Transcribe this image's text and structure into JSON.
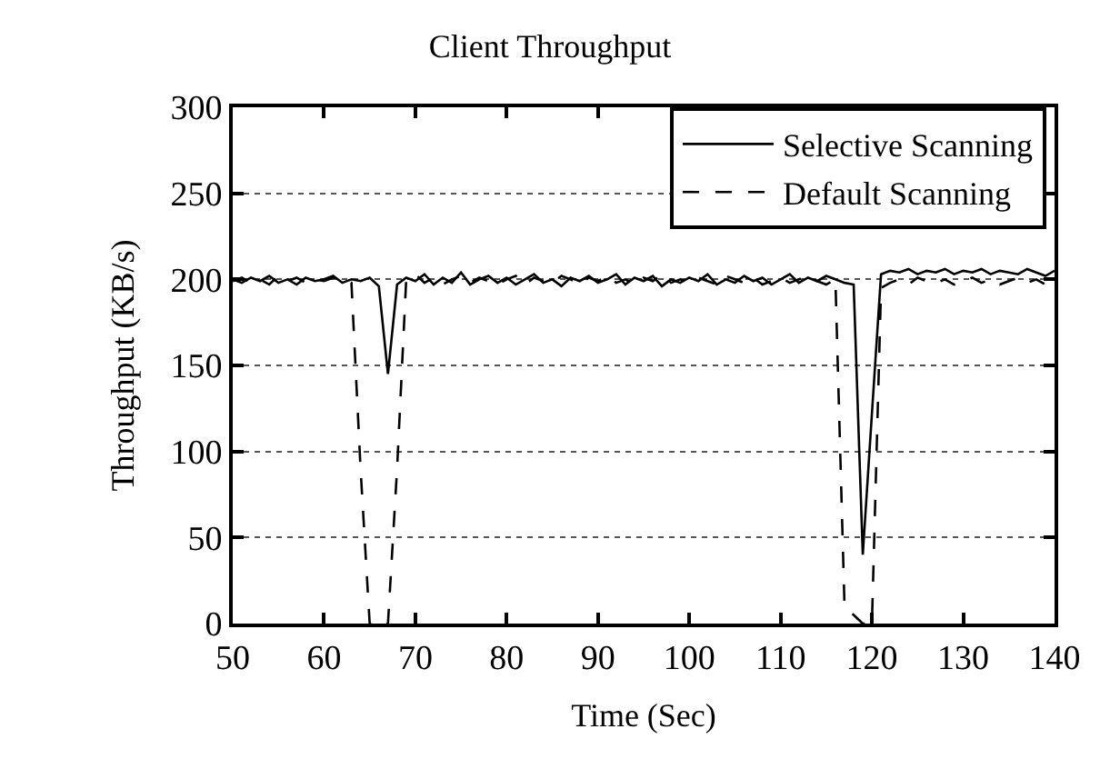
{
  "chart_data": {
    "type": "line",
    "title": "Client Throughput",
    "xlabel": "Time (Sec)",
    "ylabel": "Throughput (KB/s)",
    "x": [
      50,
      51,
      52,
      53,
      54,
      55,
      56,
      57,
      58,
      59,
      60,
      61,
      62,
      63,
      64,
      65,
      66,
      67,
      68,
      69,
      70,
      71,
      72,
      73,
      74,
      75,
      76,
      77,
      78,
      79,
      80,
      81,
      82,
      83,
      84,
      85,
      86,
      87,
      88,
      89,
      90,
      91,
      92,
      93,
      94,
      95,
      96,
      97,
      98,
      99,
      100,
      101,
      102,
      103,
      104,
      105,
      106,
      107,
      108,
      109,
      110,
      111,
      112,
      113,
      114,
      115,
      116,
      117,
      118,
      119,
      120,
      121,
      122,
      123,
      124,
      125,
      126,
      127,
      128,
      129,
      130,
      131,
      132,
      133,
      134,
      135,
      136,
      137,
      138,
      139,
      140
    ],
    "series": [
      {
        "name": "Selective Scanning",
        "color": "#000000",
        "line_style": "solid",
        "values": [
          200,
          198,
          201,
          199,
          202,
          198,
          200,
          197,
          201,
          199,
          200,
          202,
          198,
          200,
          199,
          201,
          196,
          145,
          197,
          201,
          199,
          203,
          197,
          201,
          198,
          204,
          197,
          200,
          202,
          198,
          201,
          197,
          200,
          203,
          198,
          200,
          196,
          201,
          199,
          202,
          198,
          200,
          203,
          197,
          201,
          199,
          202,
          196,
          200,
          198,
          201,
          199,
          203,
          197,
          200,
          198,
          202,
          199,
          201,
          197,
          200,
          203,
          198,
          201,
          199,
          202,
          200,
          198,
          197,
          40,
          122,
          203,
          205,
          204,
          206,
          203,
          205,
          204,
          206,
          203,
          205,
          204,
          206,
          203,
          205,
          204,
          203,
          206,
          204,
          202,
          205
        ]
      },
      {
        "name": "Default Scanning",
        "color": "#000000",
        "line_style": "dashed",
        "values": [
          199,
          201,
          198,
          200,
          197,
          202,
          199,
          201,
          198,
          200,
          199,
          201,
          200,
          198,
          90,
          0,
          2,
          0,
          90,
          200,
          203,
          198,
          201,
          197,
          200,
          202,
          198,
          201,
          199,
          197,
          200,
          202,
          197,
          201,
          199,
          198,
          202,
          200,
          197,
          201,
          199,
          202,
          198,
          200,
          197,
          201,
          199,
          203,
          198,
          200,
          198,
          201,
          199,
          197,
          202,
          200,
          198,
          201,
          197,
          199,
          201,
          198,
          200,
          202,
          199,
          197,
          200,
          10,
          5,
          0,
          0,
          195,
          198,
          200,
          197,
          201,
          199,
          198,
          200,
          197,
          199,
          201,
          198,
          200,
          197,
          199,
          201,
          198,
          200,
          197,
          199
        ]
      }
    ],
    "xlim": [
      50,
      140
    ],
    "xticks": [
      50,
      60,
      70,
      80,
      90,
      100,
      110,
      120,
      130,
      140
    ],
    "ylim": [
      0,
      300
    ],
    "yticks": [
      0,
      50,
      100,
      150,
      200,
      250,
      300
    ],
    "grid": "y",
    "legend": "top right",
    "marker": "none"
  }
}
